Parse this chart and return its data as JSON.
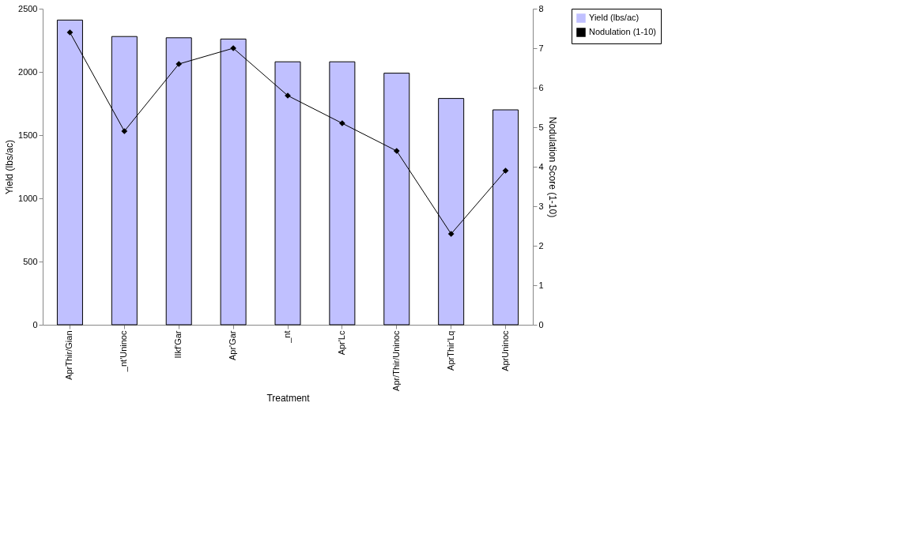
{
  "chart_data": {
    "type": "bar",
    "xlabel": "Treatment",
    "ylabel": "Yield (lbs/ac)",
    "y2label": "Nodulation Score (1-10)",
    "categories": [
      "AprThir/Gian",
      "_nt'Uninoc",
      "IIkf'Gar",
      "Apr'Gar",
      "_nt",
      "Apr'Lc",
      "Apr/Thir/Uninoc",
      "AprThir'Lq",
      "AprUninoc"
    ],
    "series": [
      {
        "name": "Yield (lbs/ac)",
        "color": "#c0c0ff",
        "values": [
          2410,
          2280,
          2270,
          2260,
          2080,
          2080,
          1990,
          1790,
          1700
        ]
      },
      {
        "name": "Nodulation (1-10)",
        "type": "line",
        "axis": "y2",
        "color": "#000000",
        "marker": "diamond",
        "values": [
          7.4,
          4.9,
          6.6,
          7.0,
          5.8,
          5.1,
          4.4,
          2.3,
          3.9
        ]
      }
    ],
    "ylim": [
      0,
      2500
    ],
    "yticks": [
      0,
      500,
      1000,
      1500,
      2000,
      2500
    ],
    "y2lim": [
      0,
      8
    ],
    "y2ticks": [
      0,
      1,
      2,
      3,
      4,
      5,
      6,
      7,
      8
    ],
    "grid": false,
    "legend": "right"
  }
}
